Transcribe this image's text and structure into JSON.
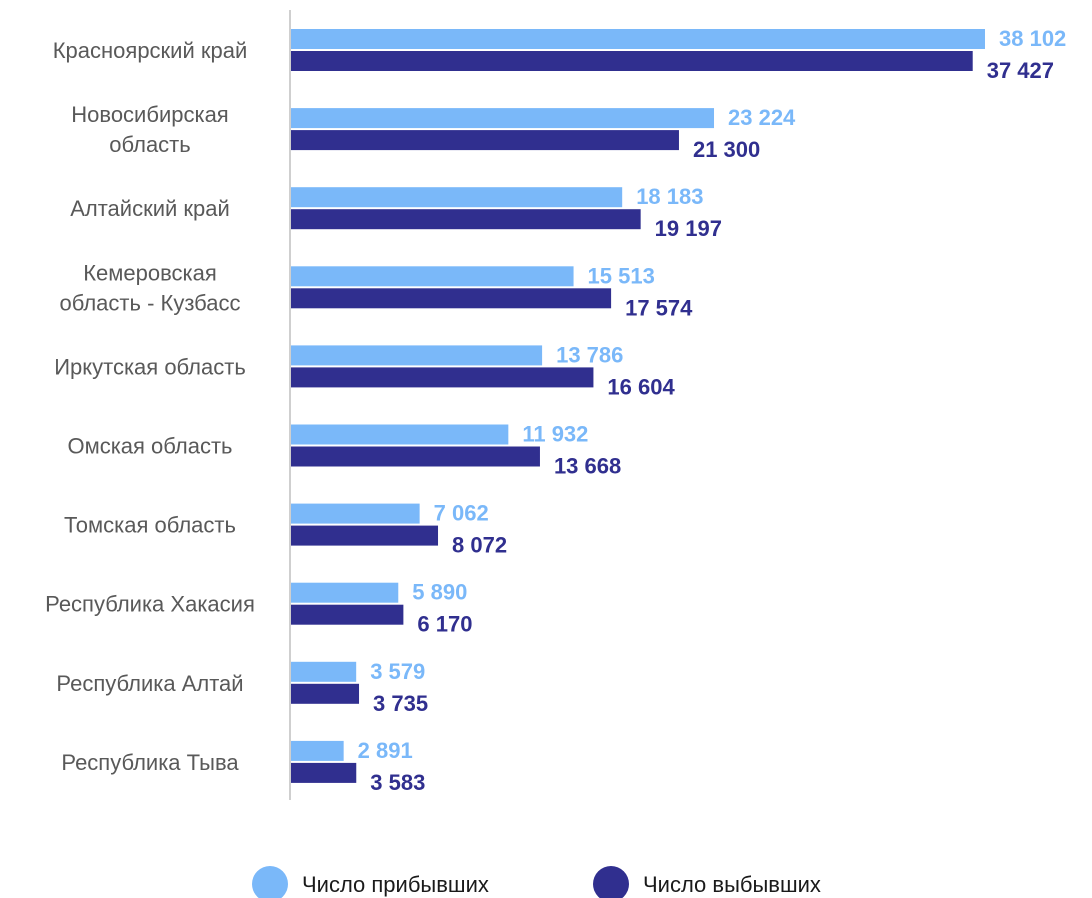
{
  "chart_data": {
    "type": "bar",
    "orientation": "horizontal",
    "categories": [
      [
        "Красноярский край"
      ],
      [
        "Новосибирская",
        "область"
      ],
      [
        "Алтайский край"
      ],
      [
        "Кемеровская",
        "область - Кузбасс"
      ],
      [
        "Иркутская область"
      ],
      [
        "Омская область"
      ],
      [
        "Томская область"
      ],
      [
        "Республика Хакасия"
      ],
      [
        "Республика Алтай"
      ],
      [
        "Республика Тыва"
      ]
    ],
    "series": [
      {
        "name": "Число прибывших",
        "color": "#7ab8f9",
        "values": [
          38102,
          23224,
          18183,
          15513,
          13786,
          11932,
          7062,
          5890,
          3579,
          2891
        ],
        "labels": [
          "38 102",
          "23 224",
          "18 183",
          "15 513",
          "13 786",
          "11 932",
          "7 062",
          "5 890",
          "3 579",
          "2 891"
        ]
      },
      {
        "name": "Число выбывших",
        "color": "#302f8f",
        "values": [
          37427,
          21300,
          19197,
          17574,
          16604,
          13668,
          8072,
          6170,
          3735,
          3583
        ],
        "labels": [
          "37 427",
          "21 300",
          "19 197",
          "17 574",
          "16 604",
          "13 668",
          "8 072",
          "6 170",
          "3 735",
          "3 583"
        ]
      }
    ],
    "xlim": [
      0,
      38102
    ],
    "grid": false,
    "legend_position": "bottom"
  }
}
